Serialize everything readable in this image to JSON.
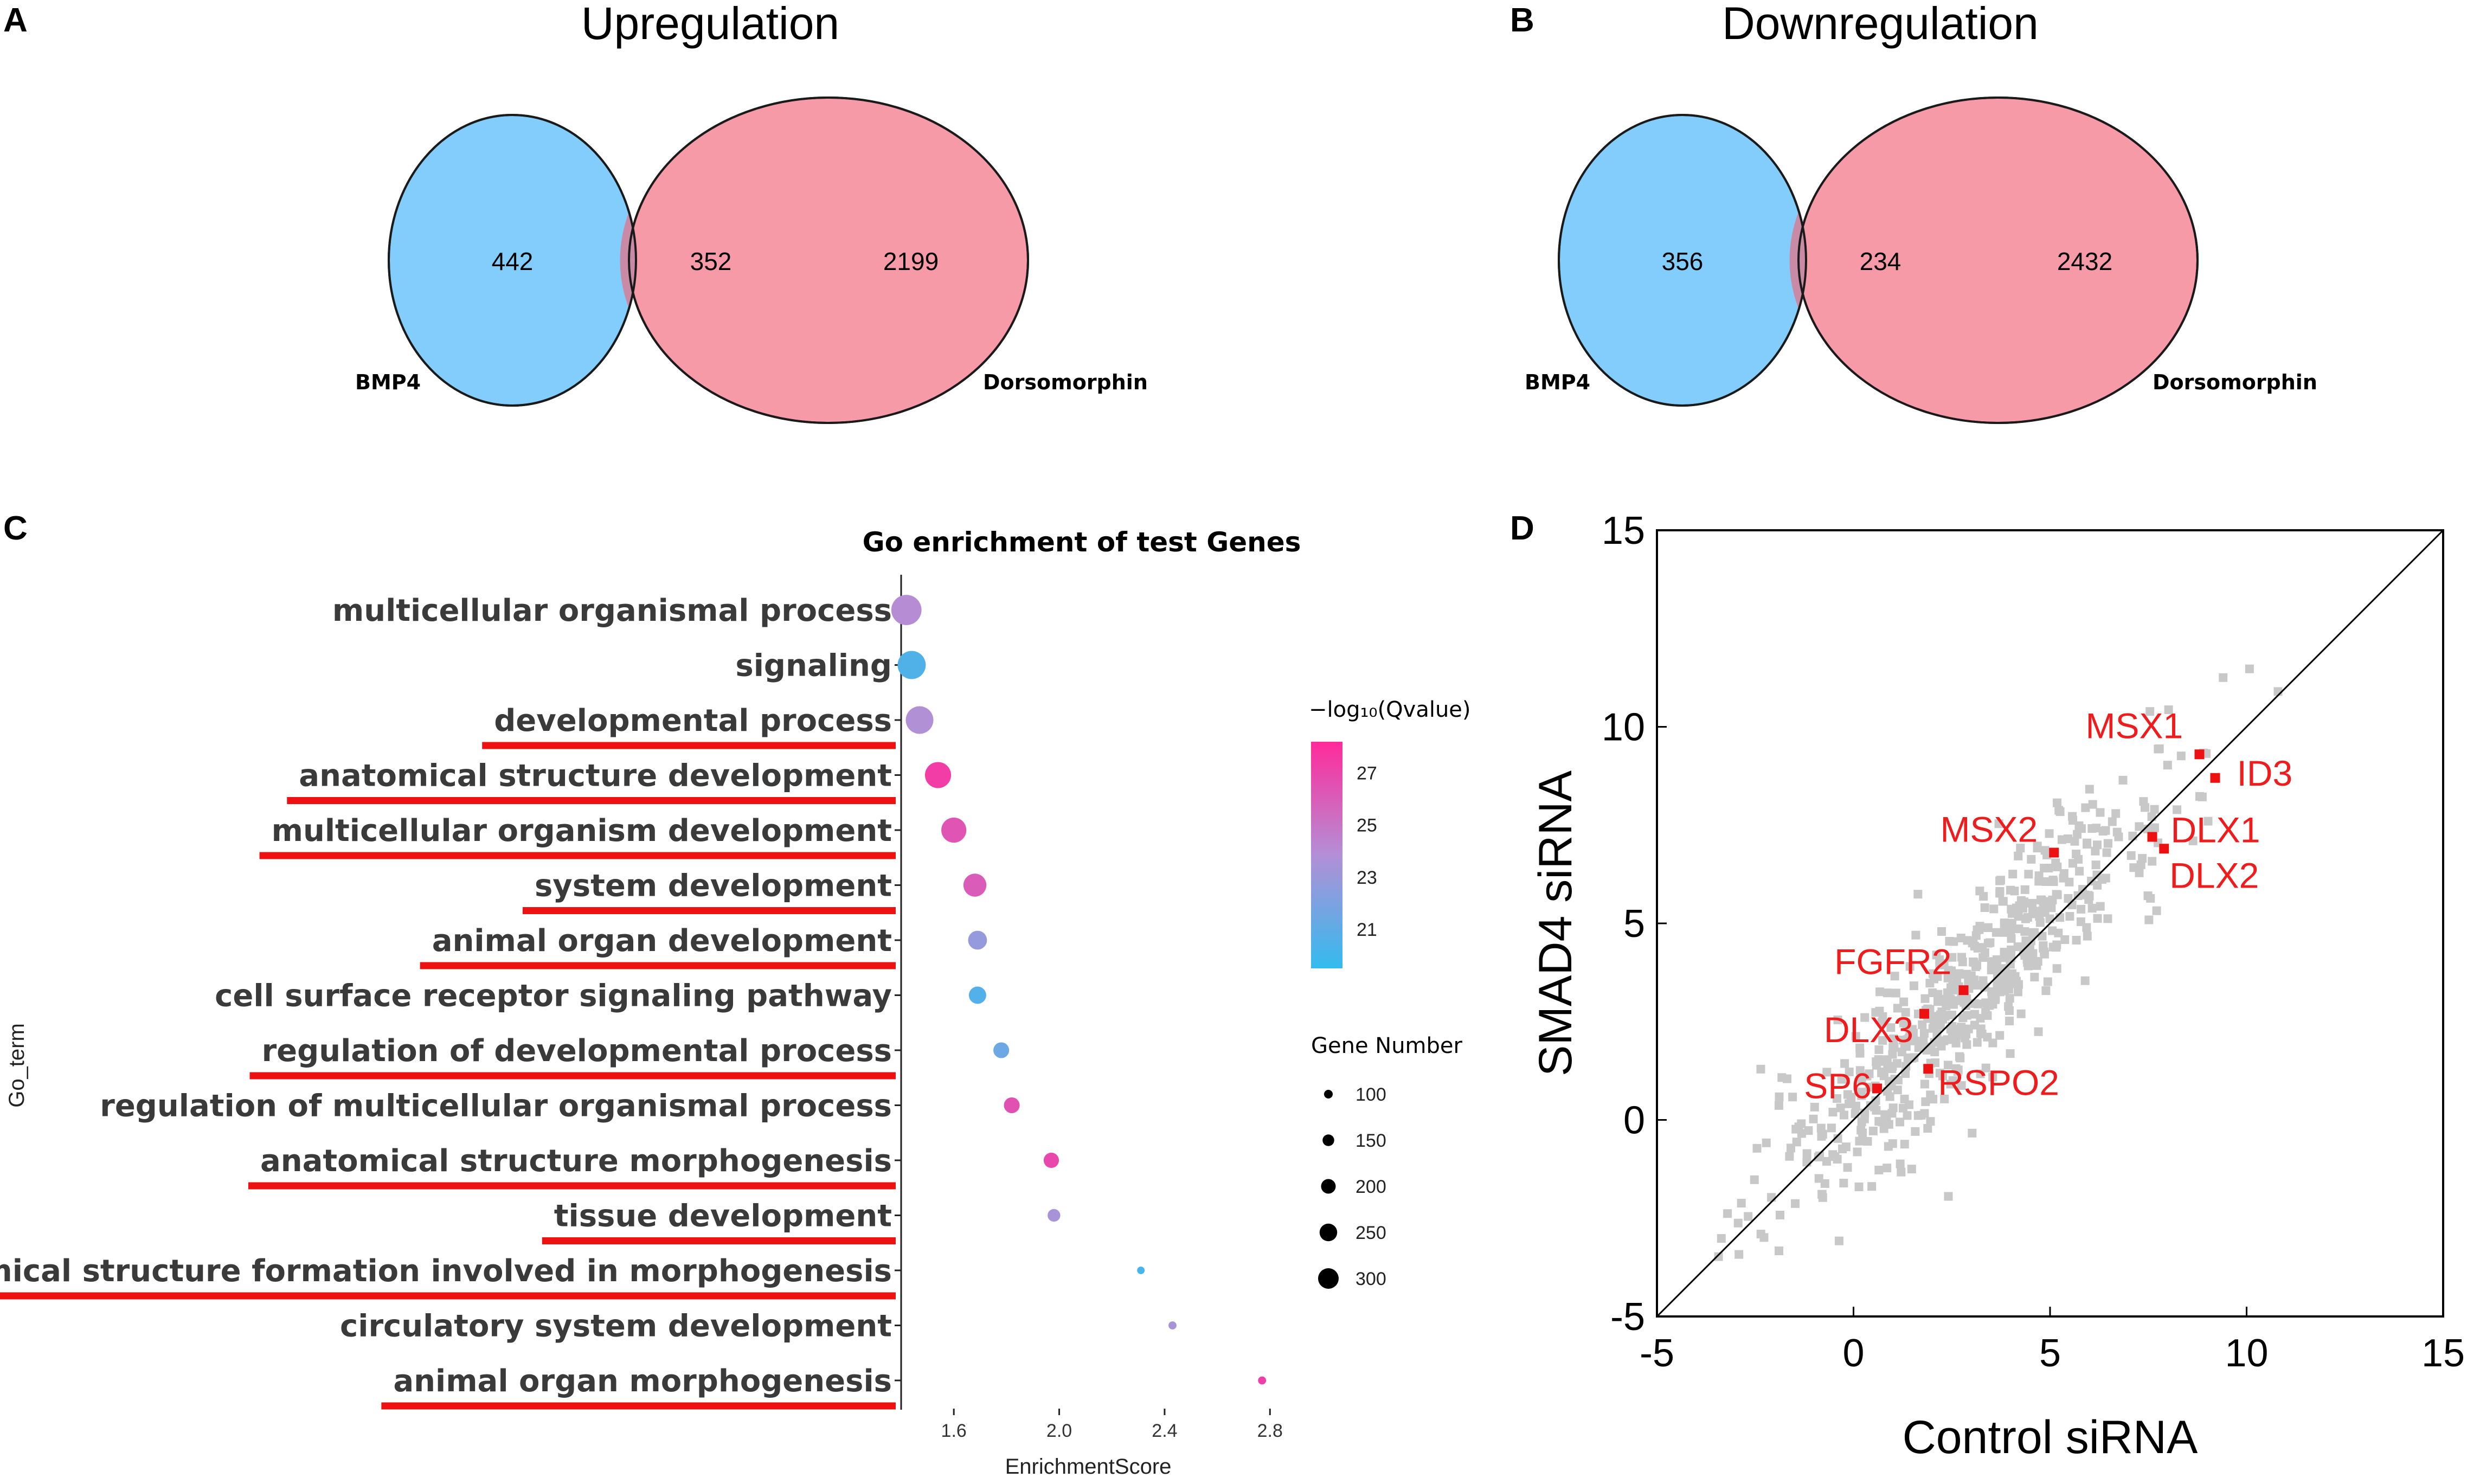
{
  "colors": {
    "venn_left": "#82cdfb",
    "venn_right": "#f79aa8",
    "venn_overlap": "#c98aa6",
    "underline": "#ee1111",
    "gradient_low": "#33bbee",
    "gradient_mid": "#b38fd6",
    "gradient_high": "#ff2a9a",
    "scatter_bg": "#c8c8c8",
    "scatter_hl": "#ee1111"
  },
  "panels": {
    "a": {
      "letter": "A",
      "title": "Upregulation"
    },
    "b": {
      "letter": "B",
      "title": "Downregulation"
    },
    "c": {
      "letter": "C"
    },
    "d": {
      "letter": "D"
    }
  },
  "chart_data": [
    {
      "type": "venn",
      "panel": "A",
      "title": "Upregulation",
      "sets": [
        "BMP4",
        "Dorsomorphin"
      ],
      "only_left": "442",
      "overlap": "352",
      "only_right": "2199"
    },
    {
      "type": "venn",
      "panel": "B",
      "title": "Downregulation",
      "sets": [
        "BMP4",
        "Dorsomorphin"
      ],
      "only_left": "356",
      "overlap": "234",
      "only_right": "2432"
    },
    {
      "type": "scatter",
      "panel": "C",
      "title": "Go enrichment of test Genes",
      "xlabel": "EnrichmentScore",
      "ylabel": "Go_term",
      "xlim": [
        1.4,
        2.82
      ],
      "xticks": [
        "1.6",
        "2.0",
        "2.4",
        "2.8"
      ],
      "color_legend_title": "−log₁₀(Qvalue)",
      "color_ticks": [
        "27",
        "25",
        "23",
        "21"
      ],
      "color_range": [
        19.5,
        28.2
      ],
      "size_legend_title": "Gene Number",
      "size_ticks": [
        "100",
        "150",
        "200",
        "250",
        "300"
      ],
      "terms": [
        {
          "label": "multicellular organismal process",
          "score": 1.42,
          "q": 24.0,
          "genes": 290,
          "underlined": false
        },
        {
          "label": "signaling",
          "score": 1.44,
          "q": 20.5,
          "genes": 270,
          "underlined": false
        },
        {
          "label": "developmental process",
          "score": 1.47,
          "q": 23.8,
          "genes": 265,
          "underlined": true
        },
        {
          "label": "anatomical structure development",
          "score": 1.54,
          "q": 27.4,
          "genes": 250,
          "underlined": true
        },
        {
          "label": "multicellular organism development",
          "score": 1.6,
          "q": 26.4,
          "genes": 240,
          "underlined": true
        },
        {
          "label": "system development",
          "score": 1.68,
          "q": 26.0,
          "genes": 220,
          "underlined": true
        },
        {
          "label": "animal organ development",
          "score": 1.69,
          "q": 22.8,
          "genes": 180,
          "underlined": true
        },
        {
          "label": "cell surface receptor signaling pathway",
          "score": 1.69,
          "q": 20.6,
          "genes": 165,
          "underlined": false
        },
        {
          "label": "regulation of developmental process",
          "score": 1.78,
          "q": 21.4,
          "genes": 150,
          "underlined": true
        },
        {
          "label": "regulation of multicellular organismal process",
          "score": 1.82,
          "q": 26.5,
          "genes": 150,
          "underlined": false
        },
        {
          "label": "anatomical structure morphogenesis",
          "score": 1.97,
          "q": 26.9,
          "genes": 145,
          "underlined": true
        },
        {
          "label": "tissue development",
          "score": 1.98,
          "q": 23.5,
          "genes": 120,
          "underlined": true
        },
        {
          "label": "anatomical structure formation involved in morphogenesis",
          "score": 2.31,
          "q": 20.2,
          "genes": 70,
          "underlined": true
        },
        {
          "label": "circulatory system development",
          "score": 2.43,
          "q": 23.5,
          "genes": 75,
          "underlined": false
        },
        {
          "label": "animal organ morphogenesis",
          "score": 2.77,
          "q": 27.2,
          "genes": 75,
          "underlined": true
        }
      ]
    },
    {
      "type": "scatter",
      "panel": "D",
      "xlabel": "Control siRNA",
      "ylabel": "SMAD4 siRNA",
      "xlim": [
        -5,
        15
      ],
      "ylim": [
        -5,
        15
      ],
      "xticks": [
        "-5",
        "0",
        "5",
        "10",
        "15"
      ],
      "yticks": [
        "-5",
        "0",
        "5",
        "10",
        "15"
      ],
      "diagonal": "y = x",
      "highlighted": [
        {
          "gene": "MSX1",
          "x": 8.8,
          "y": 9.3
        },
        {
          "gene": "ID3",
          "x": 9.2,
          "y": 8.7
        },
        {
          "gene": "DLX1",
          "x": 7.6,
          "y": 7.2
        },
        {
          "gene": "DLX2",
          "x": 7.9,
          "y": 6.9
        },
        {
          "gene": "MSX2",
          "x": 5.1,
          "y": 6.8
        },
        {
          "gene": "FGFR2",
          "x": 2.8,
          "y": 3.3
        },
        {
          "gene": "DLX3",
          "x": 1.8,
          "y": 2.7
        },
        {
          "gene": "RSPO2",
          "x": 1.9,
          "y": 1.3
        },
        {
          "gene": "SP6",
          "x": 0.6,
          "y": 0.8
        }
      ],
      "background_points": 620,
      "background_note": "grey points clustered along the diagonal"
    }
  ]
}
